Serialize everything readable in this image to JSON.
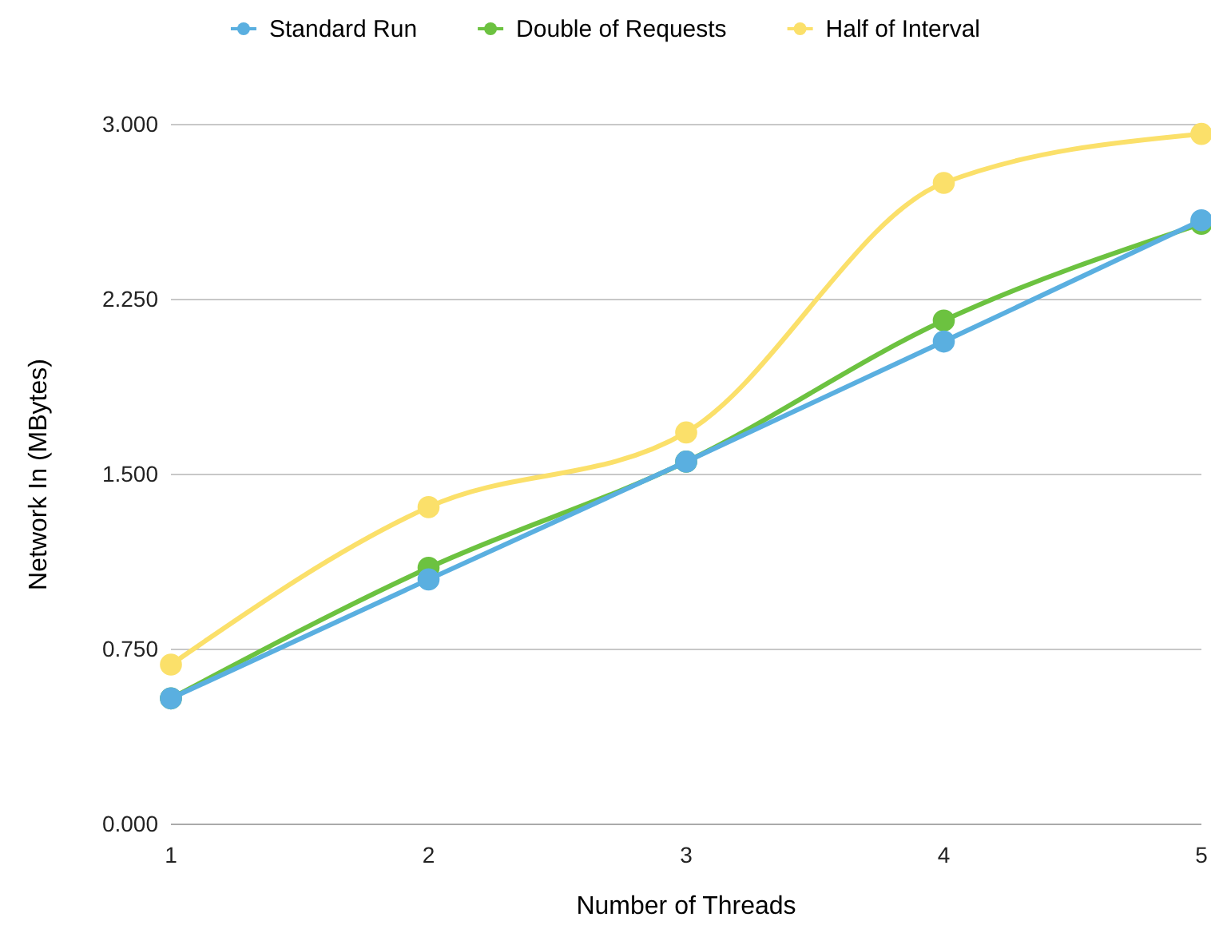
{
  "chart_data": {
    "type": "line",
    "xlabel": "Number of Threads",
    "ylabel": "Network In (MBytes)",
    "x": [
      1,
      2,
      3,
      4,
      5
    ],
    "xlim": [
      1,
      5
    ],
    "xticks": [
      1,
      2,
      3,
      4,
      5
    ],
    "ylim": [
      0,
      3
    ],
    "yticks": [
      {
        "value": 0,
        "label": "0.000"
      },
      {
        "value": 0.75,
        "label": "0.750"
      },
      {
        "value": 1.5,
        "label": "1.500"
      },
      {
        "value": 2.25,
        "label": "2.250"
      },
      {
        "value": 3,
        "label": "3.000"
      }
    ],
    "grid": "y",
    "legend": "top",
    "marker": "circle",
    "line_style": "solid",
    "series": [
      {
        "name": "Standard Run",
        "color": "#5aafe0",
        "values": [
          0.54,
          1.05,
          1.555,
          2.07,
          2.59
        ]
      },
      {
        "name": "Double of Requests",
        "color": "#6cc240",
        "values": [
          0.54,
          1.1,
          1.555,
          2.16,
          2.575
        ]
      },
      {
        "name": "Half of Interval",
        "color": "#fbe06a",
        "values": [
          0.685,
          1.36,
          1.68,
          2.75,
          2.96
        ]
      }
    ]
  }
}
